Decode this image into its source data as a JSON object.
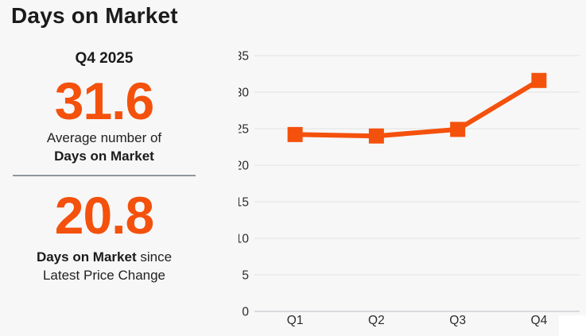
{
  "page_title": "Days on Market",
  "stats_panel": {
    "period_label": "Q4 2025",
    "average": {
      "value": "31.6",
      "caption_line1": "Average number of",
      "caption_line2_bold": "Days on Market"
    },
    "since_change": {
      "value": "20.8",
      "caption_bold": "Days on Market",
      "caption_suffix": " since",
      "caption_line2": "Latest Price Change"
    }
  },
  "chart_data": {
    "type": "line",
    "categories": [
      "Q1",
      "Q2",
      "Q3",
      "Q4"
    ],
    "values": [
      24.2,
      24.0,
      24.9,
      31.6
    ],
    "series_name": "Days on Market",
    "xlabel": "",
    "ylabel": "",
    "ylim": [
      0,
      35
    ],
    "ytick_step": 5,
    "grid": true,
    "legend": "none",
    "marker": "square"
  },
  "colors": {
    "accent_orange": "#f4510c",
    "text_dark": "#1b1b1b",
    "axis_label": "#2b2b2b",
    "gridline": "#e3e3e5",
    "baseline": "#cfcfd2",
    "divider": "#8e979e",
    "background": "#f7f7f8"
  }
}
